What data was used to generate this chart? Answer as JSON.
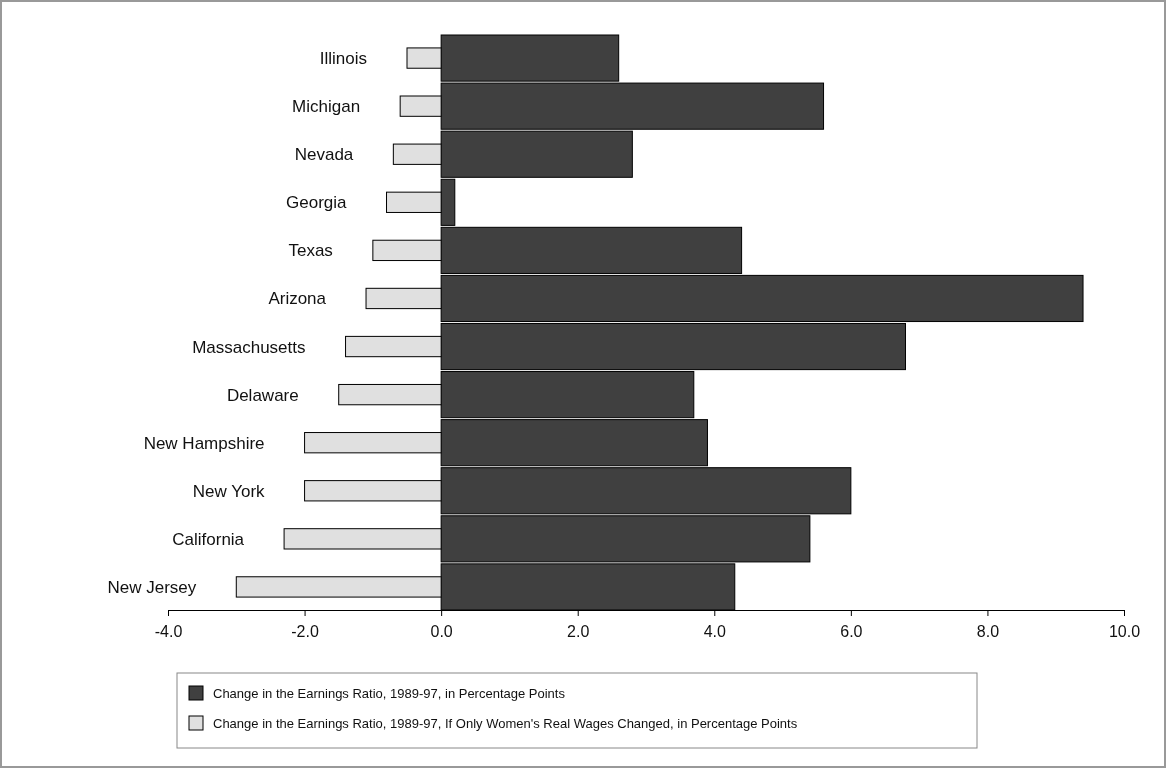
{
  "chart_data": {
    "type": "bar",
    "orientation": "horizontal",
    "categories": [
      "Illinois",
      "Michigan",
      "Nevada",
      "Georgia",
      "Texas",
      "Arizona",
      "Massachusetts",
      "Delaware",
      "New Hampshire",
      "New York",
      "California",
      "New Jersey"
    ],
    "series": [
      {
        "name": "Change in the Earnings Ratio, 1989-97, in Percentage Points",
        "color": "#404040",
        "values": [
          2.6,
          5.6,
          2.8,
          0.2,
          4.4,
          9.4,
          6.8,
          3.7,
          3.9,
          6.0,
          5.4,
          4.3
        ]
      },
      {
        "name": "Change in the Earnings Ratio, 1989-97, If Only Women's Real Wages Changed, in Percentage Points",
        "color": "#e0e0e0",
        "values": [
          -0.5,
          -0.6,
          -0.7,
          -0.8,
          -1.0,
          -1.1,
          -1.4,
          -1.5,
          -2.0,
          -2.0,
          -2.3,
          -3.0
        ]
      }
    ],
    "xlim": [
      -4,
      10
    ],
    "xticks": [
      {
        "value": -4,
        "label": "-4.0"
      },
      {
        "value": -2,
        "label": "-2.0"
      },
      {
        "value": 0,
        "label": "0.0"
      },
      {
        "value": 2,
        "label": "2.0"
      },
      {
        "value": 4,
        "label": "4.0"
      },
      {
        "value": 6,
        "label": "6.0"
      },
      {
        "value": 8,
        "label": "8.0"
      },
      {
        "value": 10,
        "label": "10.0"
      }
    ],
    "grid": false,
    "legend": "bottom"
  }
}
